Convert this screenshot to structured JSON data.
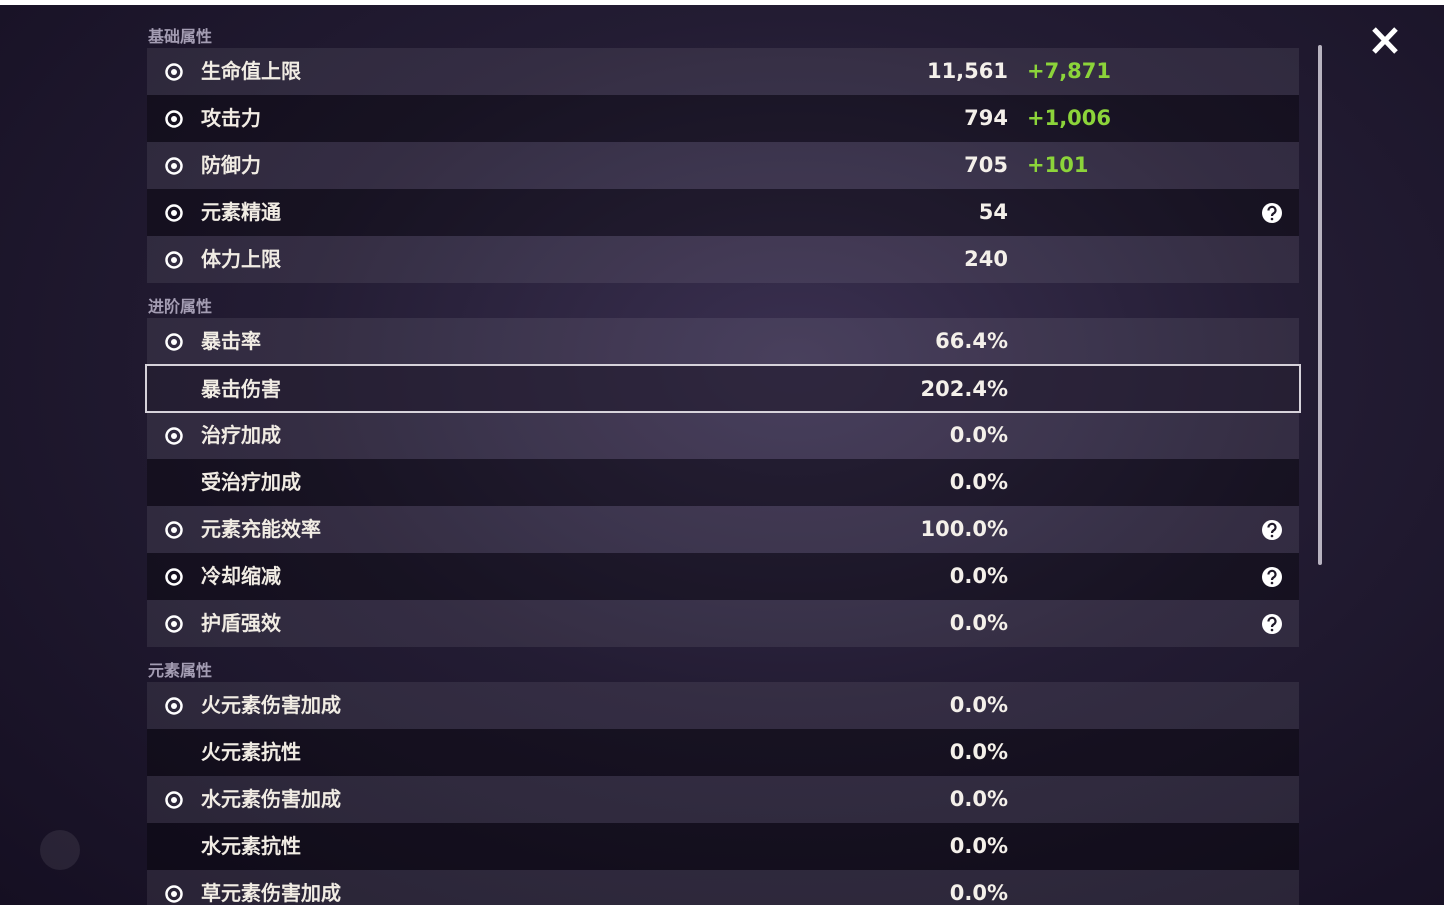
{
  "sections": [
    {
      "title": "基础属性",
      "rows": [
        {
          "label": "生命值上限",
          "value": "11,561",
          "bonus": "+7,871"
        },
        {
          "label": "攻击力",
          "value": "794",
          "bonus": "+1,006"
        },
        {
          "label": "防御力",
          "value": "705",
          "bonus": "+101"
        },
        {
          "label": "元素精通",
          "value": "54",
          "help": true
        },
        {
          "label": "体力上限",
          "value": "240"
        }
      ]
    },
    {
      "title": "进阶属性",
      "rows": [
        {
          "label": "暴击率",
          "value": "66.4%"
        },
        {
          "label": "暴击伤害",
          "value": "202.4%",
          "selected": true
        },
        {
          "label": "治疗加成",
          "value": "0.0%"
        },
        {
          "label": "受治疗加成",
          "value": "0.0%"
        },
        {
          "label": "元素充能效率",
          "value": "100.0%",
          "help": true
        },
        {
          "label": "冷却缩减",
          "value": "0.0%",
          "help": true
        },
        {
          "label": "护盾强效",
          "value": "0.0%",
          "help": true
        }
      ]
    },
    {
      "title": "元素属性",
      "rows": [
        {
          "label": "火元素伤害加成",
          "value": "0.0%"
        },
        {
          "label": "火元素抗性",
          "value": "0.0%"
        },
        {
          "label": "水元素伤害加成",
          "value": "0.0%"
        },
        {
          "label": "水元素抗性",
          "value": "0.0%"
        },
        {
          "label": "草元素伤害加成",
          "value": "0.0%"
        }
      ]
    }
  ]
}
